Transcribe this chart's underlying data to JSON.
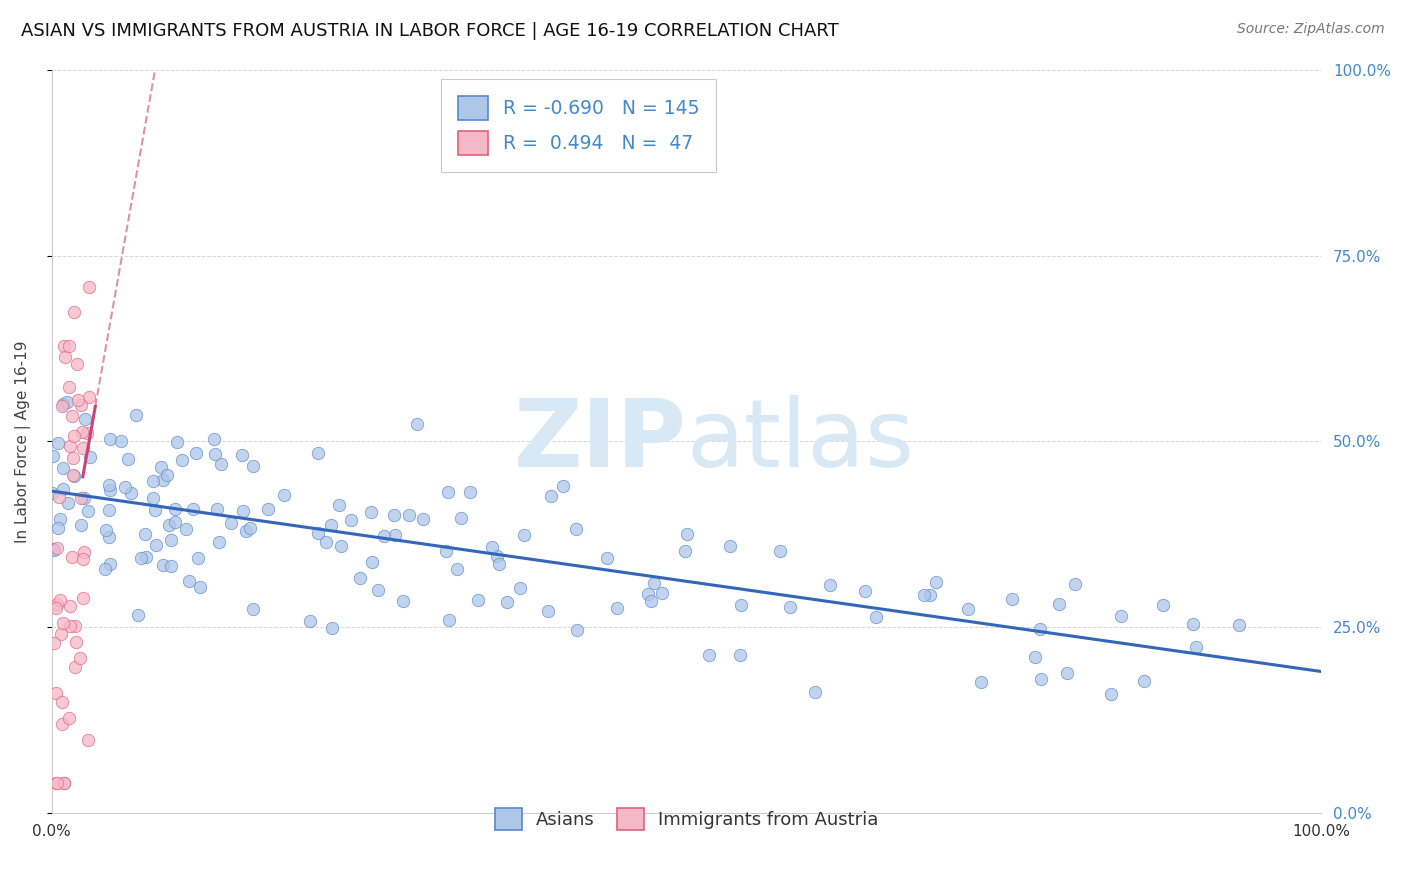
{
  "title": "ASIAN VS IMMIGRANTS FROM AUSTRIA IN LABOR FORCE | AGE 16-19 CORRELATION CHART",
  "source": "Source: ZipAtlas.com",
  "ylabel": "In Labor Force | Age 16-19",
  "xlim": [
    0.0,
    1.0
  ],
  "ylim": [
    0.0,
    1.0
  ],
  "ytick_positions": [
    0.0,
    0.25,
    0.5,
    0.75,
    1.0
  ],
  "legend_labels": [
    "Asians",
    "Immigrants from Austria"
  ],
  "asian_color": "#aec6e8",
  "austria_color": "#f5b8c8",
  "asian_edge_color": "#5588cc",
  "austria_edge_color": "#e0607a",
  "asian_line_color": "#3366bb",
  "austria_line_color": "#cc4477",
  "asian_R": -0.69,
  "asian_N": 145,
  "austria_R": 0.494,
  "austria_N": 47,
  "title_fontsize": 13,
  "legend_fontsize": 13,
  "source_fontsize": 10,
  "background_color": "#ffffff",
  "grid_color": "#cccccc",
  "right_ytick_color": "#4488cc",
  "right_ytick_labels": [
    "0.0%",
    "25.0%",
    "50.0%",
    "75.0%",
    "100.0%"
  ]
}
